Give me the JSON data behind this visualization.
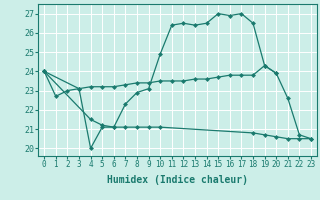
{
  "xlabel": "Humidex (Indice chaleur)",
  "background_color": "#cceee8",
  "grid_color": "#ffffff",
  "line_color": "#1a7a6e",
  "xlim_min": -0.5,
  "xlim_max": 23.5,
  "ylim_min": 19.6,
  "ylim_max": 27.5,
  "x": [
    0,
    1,
    2,
    3,
    4,
    5,
    6,
    7,
    8,
    9,
    10,
    11,
    12,
    13,
    14,
    15,
    16,
    17,
    18,
    19,
    20,
    21,
    22,
    23
  ],
  "line_main": [
    24.0,
    22.7,
    23.0,
    23.1,
    20.0,
    21.1,
    21.1,
    22.3,
    22.9,
    23.1,
    24.9,
    26.4,
    26.5,
    26.4,
    26.5,
    27.0,
    26.9,
    27.0,
    26.5,
    24.3,
    23.9,
    22.6,
    20.7,
    20.5
  ],
  "line_low": [
    24.0,
    null,
    null,
    null,
    21.5,
    21.2,
    21.1,
    21.1,
    21.1,
    21.1,
    21.1,
    null,
    null,
    null,
    null,
    null,
    null,
    null,
    20.8,
    20.7,
    20.6,
    20.5,
    20.5,
    20.5
  ],
  "line_mid": [
    24.0,
    null,
    null,
    23.1,
    23.2,
    23.2,
    23.2,
    23.3,
    23.4,
    23.4,
    23.5,
    23.5,
    23.5,
    23.6,
    23.6,
    23.7,
    23.8,
    23.8,
    23.8,
    24.3,
    23.9,
    null,
    null,
    null
  ],
  "yticks": [
    20,
    21,
    22,
    23,
    24,
    25,
    26,
    27
  ],
  "xticks": [
    0,
    1,
    2,
    3,
    4,
    5,
    6,
    7,
    8,
    9,
    10,
    11,
    12,
    13,
    14,
    15,
    16,
    17,
    18,
    19,
    20,
    21,
    22,
    23
  ],
  "tick_fontsize": 5.5,
  "xlabel_fontsize": 7,
  "marker_size": 2.5
}
